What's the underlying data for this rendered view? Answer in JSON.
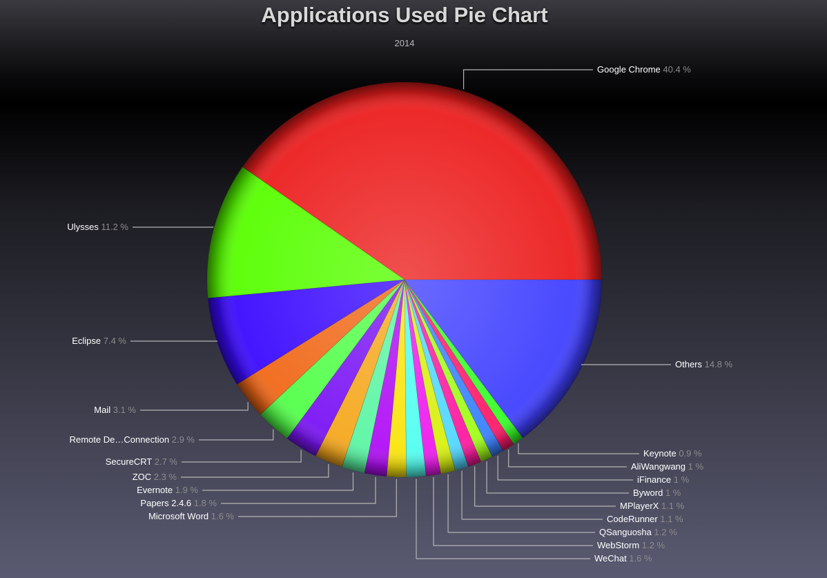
{
  "chart_data": {
    "type": "pie",
    "title": "Applications Used Pie Chart",
    "subtitle": "2014",
    "unit": "%",
    "slices": [
      {
        "name": "Google Chrome",
        "value": 40.4,
        "color": "#ec1e1e"
      },
      {
        "name": "Ulysses",
        "value": 11.2,
        "color": "#57ff00"
      },
      {
        "name": "Eclipse",
        "value": 7.4,
        "color": "#3a0aff"
      },
      {
        "name": "Mail",
        "value": 3.1,
        "color": "#f06818"
      },
      {
        "name": "Remote De…Connection",
        "value": 2.9,
        "color": "#53ff4a"
      },
      {
        "name": "SecureCRT",
        "value": 2.7,
        "color": "#7a14f5"
      },
      {
        "name": "ZOC",
        "value": 2.3,
        "color": "#f5a81e"
      },
      {
        "name": "Evernote",
        "value": 1.9,
        "color": "#5cf5a4"
      },
      {
        "name": "Papers 2.4.6",
        "value": 1.8,
        "color": "#b00ef5"
      },
      {
        "name": "Microsoft Word",
        "value": 1.6,
        "color": "#fae40e"
      },
      {
        "name": "WeChat",
        "value": 1.6,
        "color": "#52fff0"
      },
      {
        "name": "WebStorm",
        "value": 1.2,
        "color": "#ee1cee"
      },
      {
        "name": "QSanguosha",
        "value": 1.2,
        "color": "#d8f010"
      },
      {
        "name": "CodeRunner",
        "value": 1.1,
        "color": "#52d8ff"
      },
      {
        "name": "MPlayerX",
        "value": 1.1,
        "color": "#ff1aa0"
      },
      {
        "name": "Byword",
        "value": 1,
        "color": "#a2ff1a"
      },
      {
        "name": "iFinance",
        "value": 1,
        "color": "#3a82ff"
      },
      {
        "name": "AliWangwang",
        "value": 1,
        "color": "#ff1a6a"
      },
      {
        "name": "Keynote",
        "value": 0.9,
        "color": "#38ff28"
      },
      {
        "name": "Others",
        "value": 14.8,
        "color": "#4040ff"
      }
    ]
  }
}
